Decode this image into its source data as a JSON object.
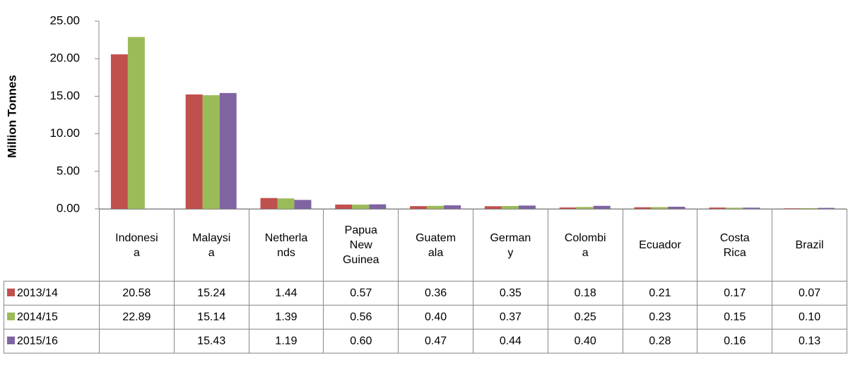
{
  "chart_data": {
    "type": "bar",
    "y_axis_label": "Million Tonnes",
    "categories": [
      "Indonesia",
      "Malaysia",
      "Netherlands",
      "Papua New Guinea",
      "Guatemala",
      "Germany",
      "Colombia",
      "Ecuador",
      "Costa Rica",
      "Brazil"
    ],
    "series": [
      {
        "name": "2013/14",
        "color": "#c0504d",
        "values": [
          20.58,
          15.24,
          1.44,
          0.57,
          0.36,
          0.35,
          0.18,
          0.21,
          0.17,
          0.07
        ],
        "value_labels": [
          "20.58",
          "15.24",
          "1.44",
          "0.57",
          "0.36",
          "0.35",
          "0.18",
          "0.21",
          "0.17",
          "0.07"
        ]
      },
      {
        "name": "2014/15",
        "color": "#9bbb59",
        "values": [
          22.89,
          15.14,
          1.39,
          0.56,
          0.4,
          0.37,
          0.25,
          0.23,
          0.15,
          0.1
        ],
        "value_labels": [
          "22.89",
          "15.14",
          "1.39",
          "0.56",
          "0.40",
          "0.37",
          "0.25",
          "0.23",
          "0.15",
          "0.10"
        ]
      },
      {
        "name": "2015/16",
        "color": "#8064a2",
        "values": [
          null,
          15.43,
          1.19,
          0.6,
          0.47,
          0.44,
          0.4,
          0.28,
          0.16,
          0.13
        ],
        "value_labels": [
          null,
          "15.43",
          "1.19",
          "0.60",
          "0.47",
          "0.44",
          "0.40",
          "0.28",
          "0.16",
          "0.13"
        ]
      }
    ],
    "ylim": [
      0,
      25
    ],
    "yticks": [
      {
        "value": 0,
        "label": "0.00"
      },
      {
        "value": 5,
        "label": "5.00"
      },
      {
        "value": 10,
        "label": "10.00"
      },
      {
        "value": 15,
        "label": "15.00"
      },
      {
        "value": 20,
        "label": "20.00"
      },
      {
        "value": 25,
        "label": "25.00"
      }
    ],
    "grid": false
  }
}
